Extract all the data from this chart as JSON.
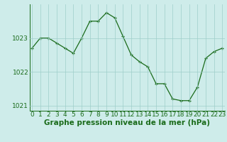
{
  "hours": [
    0,
    1,
    2,
    3,
    4,
    5,
    6,
    7,
    8,
    9,
    10,
    11,
    12,
    13,
    14,
    15,
    16,
    17,
    18,
    19,
    20,
    21,
    22,
    23
  ],
  "pressure": [
    1022.7,
    1023.0,
    1023.0,
    1022.85,
    1022.7,
    1022.55,
    1023.0,
    1023.5,
    1023.5,
    1023.75,
    1023.6,
    1023.05,
    1022.5,
    1022.3,
    1022.15,
    1021.65,
    1021.65,
    1021.2,
    1021.15,
    1021.15,
    1021.55,
    1022.4,
    1022.6,
    1022.7
  ],
  "line_color": "#1a6b1a",
  "marker": "+",
  "bg_color": "#ceecea",
  "grid_color": "#9ececa",
  "ylabel_ticks": [
    1021,
    1022,
    1023
  ],
  "ylim": [
    1020.85,
    1024.0
  ],
  "xlim": [
    -0.3,
    23.3
  ],
  "xlabel": "Graphe pression niveau de la mer (hPa)",
  "xlabel_fontsize": 7.5,
  "tick_fontsize": 6.5,
  "tick_color": "#1a6b1a",
  "axis_color": "#1a6b1a",
  "markersize": 3.5,
  "linewidth": 0.9
}
